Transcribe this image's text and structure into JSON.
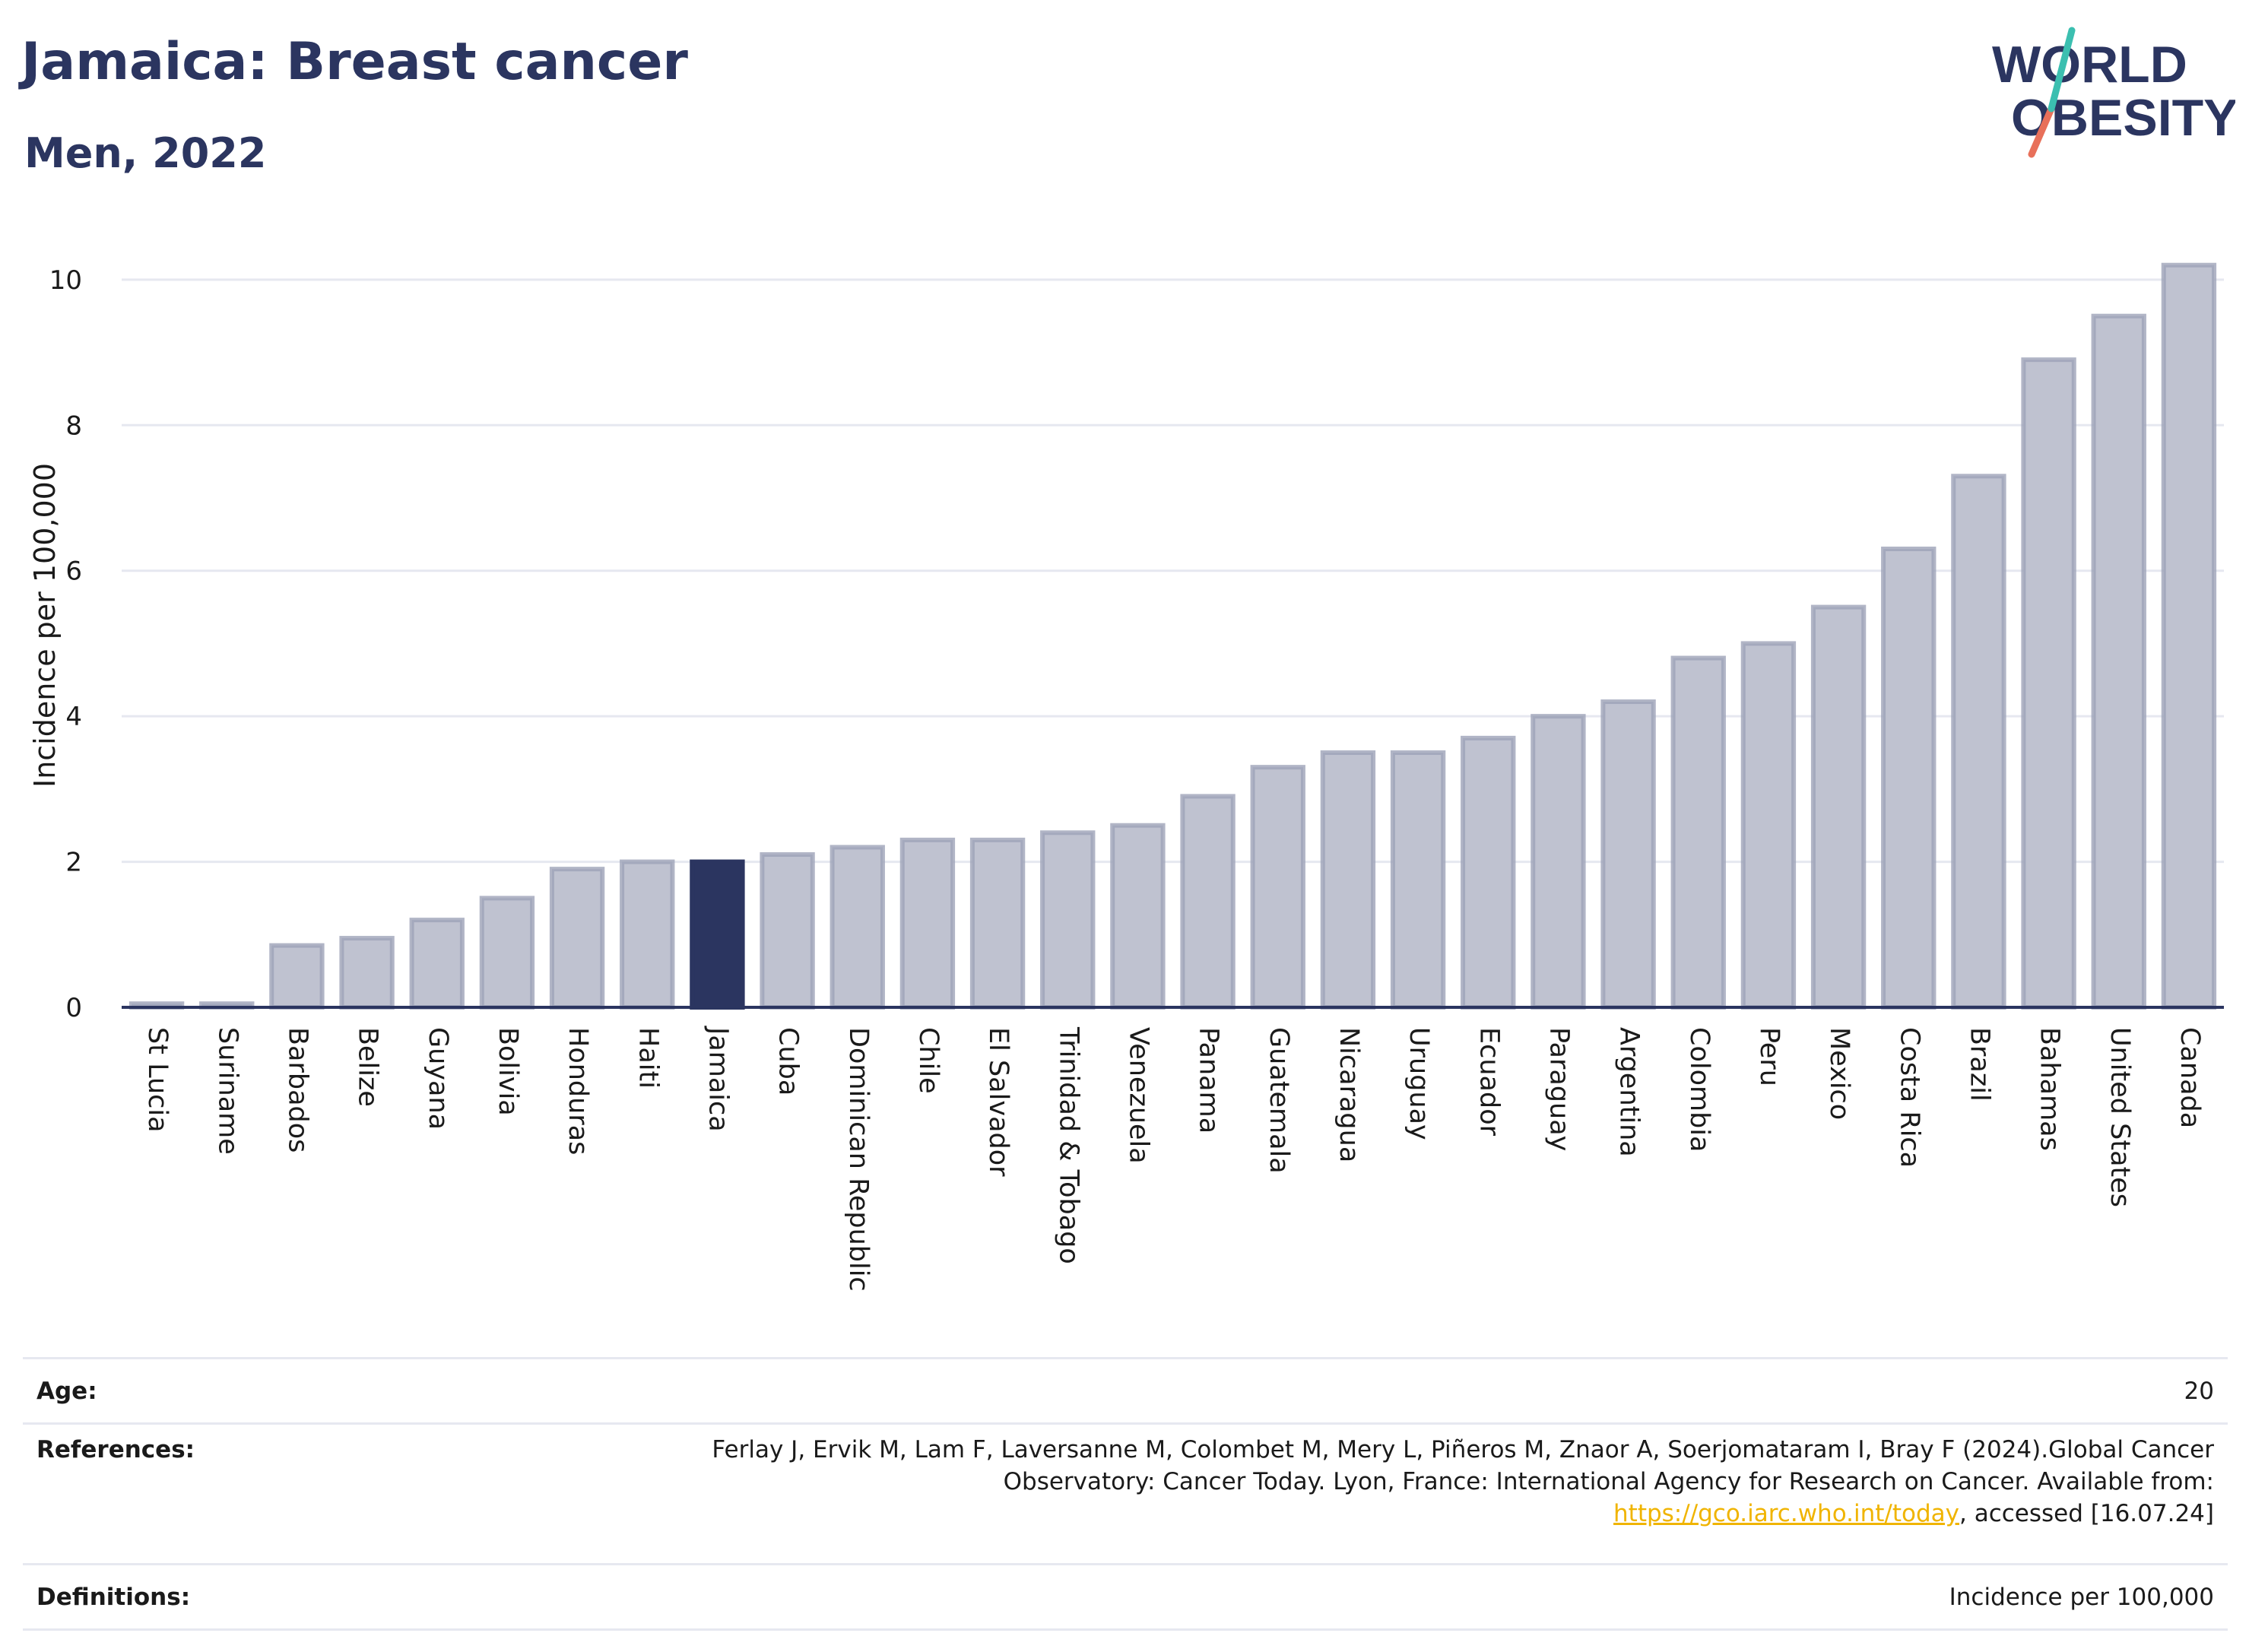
{
  "header": {
    "title": "Jamaica: Breast cancer",
    "subtitle": "Men, 2022"
  },
  "logo": {
    "line1": "WORLD",
    "line2": "OBESITY",
    "colors": [
      "#2b3560",
      "#3bbfb0",
      "#e8705a"
    ]
  },
  "colors": {
    "bar": "#bfc2d0",
    "bar_stroke": "#9ea3b8",
    "highlight": "#2b3560",
    "grid": "#e6e8f0",
    "axis": "#2b3560"
  },
  "chart_data": {
    "type": "bar",
    "ylabel": "Incidence per 100,000",
    "ylim": [
      0,
      10.5
    ],
    "yticks": [
      0,
      2,
      4,
      6,
      8,
      10
    ],
    "highlight": "Jamaica",
    "categories": [
      "St Lucia",
      "Suriname",
      "Barbados",
      "Belize",
      "Guyana",
      "Bolivia",
      "Honduras",
      "Haiti",
      "Jamaica",
      "Cuba",
      "Dominican Republic",
      "Chile",
      "El Salvador",
      "Trinidad & Tobago",
      "Venezuela",
      "Panama",
      "Guatemala",
      "Nicaragua",
      "Uruguay",
      "Ecuador",
      "Paraguay",
      "Argentina",
      "Colombia",
      "Peru",
      "Mexico",
      "Costa Rica",
      "Brazil",
      "Bahamas",
      "United States",
      "Canada"
    ],
    "values": [
      0.05,
      0.05,
      0.85,
      0.95,
      1.2,
      1.5,
      1.9,
      2.0,
      2.0,
      2.1,
      2.2,
      2.3,
      2.3,
      2.4,
      2.5,
      2.9,
      3.3,
      3.5,
      3.5,
      3.7,
      4.0,
      4.2,
      4.8,
      5.0,
      5.5,
      6.3,
      7.3,
      8.9,
      9.5,
      10.2
    ]
  },
  "meta": {
    "age_label": "Age:",
    "age_value": "20",
    "references_label": "References:",
    "references_text": "Ferlay J, Ervik M, Lam F, Laversanne M, Colombet M, Mery L, Piñeros M, Znaor A, Soerjomataram I, Bray F (2024).Global Cancer Observatory: Cancer Today. Lyon, France: International Agency for Research on Cancer. Available from:",
    "references_link": "https://gco.iarc.who.int/today",
    "references_suffix": ", accessed [16.07.24]",
    "definitions_label": "Definitions:",
    "definitions_value": "Incidence per 100,000"
  }
}
